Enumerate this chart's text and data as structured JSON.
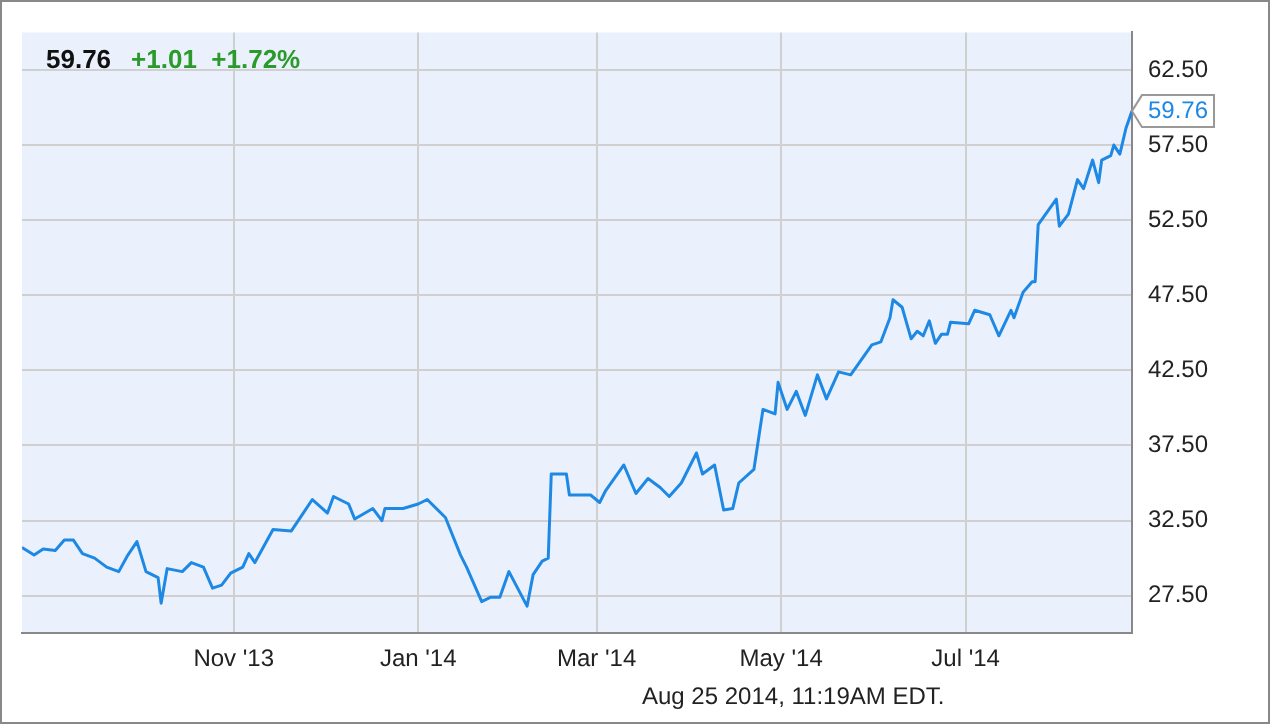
{
  "chart_data": {
    "type": "line",
    "title": "59.76",
    "subtitle": "+1.01  +1.72%",
    "annotations": [
      {
        "text": "59.76",
        "x": "2014-08-25",
        "y": 59.76
      },
      "Aug 25 2014, 11:19AM EDT."
    ],
    "x": [
      "2013-08-23",
      "2013-08-27",
      "2013-08-30",
      "2013-09-03",
      "2013-09-06",
      "2013-09-09",
      "2013-09-12",
      "2013-09-16",
      "2013-09-20",
      "2013-09-24",
      "2013-09-27",
      "2013-09-30",
      "2013-10-03",
      "2013-10-07",
      "2013-10-08",
      "2013-10-10",
      "2013-10-15",
      "2013-10-18",
      "2013-10-22",
      "2013-10-25",
      "2013-10-28",
      "2013-10-31",
      "2013-11-04",
      "2013-11-06",
      "2013-11-08",
      "2013-11-14",
      "2013-11-20",
      "2013-11-23",
      "2013-11-27",
      "2013-12-02",
      "2013-12-04",
      "2013-12-09",
      "2013-12-11",
      "2013-12-17",
      "2013-12-20",
      "2013-12-21",
      "2013-12-27",
      "2014-01-01",
      "2014-01-04",
      "2014-01-10",
      "2014-01-15",
      "2014-01-17",
      "2014-01-22",
      "2014-01-25",
      "2014-01-28",
      "2014-01-31",
      "2014-02-06",
      "2014-02-08",
      "2014-02-11",
      "2014-02-13",
      "2014-02-14",
      "2014-02-19",
      "2014-02-20",
      "2014-02-27",
      "2014-03-02",
      "2014-03-04",
      "2014-03-10",
      "2014-03-14",
      "2014-03-18",
      "2014-03-22",
      "2014-03-25",
      "2014-03-29",
      "2014-04-03",
      "2014-04-05",
      "2014-04-09",
      "2014-04-12",
      "2014-04-15",
      "2014-04-17",
      "2014-04-22",
      "2014-04-25",
      "2014-04-29",
      "2014-04-30",
      "2014-05-03",
      "2014-05-06",
      "2014-05-09",
      "2014-05-13",
      "2014-05-16",
      "2014-05-20",
      "2014-05-24",
      "2014-05-31",
      "2014-06-03",
      "2014-06-06",
      "2014-06-07",
      "2014-06-10",
      "2014-06-13",
      "2014-06-15",
      "2014-06-17",
      "2014-06-19",
      "2014-06-21",
      "2014-06-23",
      "2014-06-25",
      "2014-06-26",
      "2014-07-02",
      "2014-07-04",
      "2014-07-09",
      "2014-07-12",
      "2014-07-16",
      "2014-07-17",
      "2014-07-20",
      "2014-07-23",
      "2014-07-24",
      "2014-07-25",
      "2014-07-31",
      "2014-08-01",
      "2014-08-04",
      "2014-08-07",
      "2014-08-09",
      "2014-08-12",
      "2014-08-14",
      "2014-08-15",
      "2014-08-18",
      "2014-08-19",
      "2014-08-21",
      "2014-08-23",
      "2014-08-25"
    ],
    "series": [
      {
        "color": "#1e88e5",
        "values": [
          30.7,
          30.2,
          30.6,
          30.5,
          31.2,
          31.2,
          30.3,
          30.0,
          29.4,
          29.1,
          30.2,
          31.1,
          29.1,
          28.7,
          27.0,
          29.3,
          29.1,
          29.7,
          29.4,
          28.0,
          28.2,
          29.0,
          29.4,
          30.3,
          29.7,
          31.9,
          31.8,
          32.7,
          33.9,
          33.0,
          34.1,
          33.6,
          32.6,
          33.3,
          32.5,
          33.3,
          33.3,
          33.6,
          33.9,
          32.7,
          30.2,
          29.4,
          27.1,
          27.4,
          27.4,
          29.1,
          26.8,
          28.9,
          29.8,
          30.0,
          35.6,
          35.6,
          34.2,
          34.2,
          33.7,
          34.5,
          36.2,
          34.3,
          35.3,
          34.7,
          34.1,
          35.0,
          37.0,
          35.6,
          36.2,
          33.2,
          33.3,
          35.0,
          35.9,
          39.9,
          39.6,
          41.7,
          39.9,
          41.1,
          39.5,
          42.2,
          40.6,
          42.4,
          42.2,
          44.2,
          44.4,
          46.0,
          47.2,
          46.7,
          44.6,
          45.1,
          44.8,
          45.8,
          44.3,
          44.9,
          44.9,
          45.7,
          45.6,
          46.5,
          46.2,
          44.8,
          46.5,
          46.0,
          47.7,
          48.4,
          48.4,
          52.2,
          53.9,
          52.1,
          52.9,
          55.2,
          54.6,
          56.5,
          55.0,
          56.5,
          56.8,
          57.5,
          56.9,
          58.6,
          59.76
        ]
      }
    ],
    "xlim": [
      "2013-08-23",
      "2014-08-25"
    ],
    "xticks": [
      {
        "value": "2013-11-01",
        "label": "Nov '13"
      },
      {
        "value": "2014-01-01",
        "label": "Jan '14"
      },
      {
        "value": "2014-03-01",
        "label": "Mar '14"
      },
      {
        "value": "2014-05-01",
        "label": "May '14"
      },
      {
        "value": "2014-07-01",
        "label": "Jul '14"
      }
    ],
    "ylim": [
      25,
      65
    ],
    "yticks": [
      {
        "value": 27.5,
        "label": "27.50"
      },
      {
        "value": 32.5,
        "label": "32.50"
      },
      {
        "value": 37.5,
        "label": "37.50"
      },
      {
        "value": 42.5,
        "label": "42.50"
      },
      {
        "value": 47.5,
        "label": "47.50"
      },
      {
        "value": 52.5,
        "label": "52.50"
      },
      {
        "value": 57.5,
        "label": "57.50"
      },
      {
        "value": 62.5,
        "label": "62.50"
      }
    ],
    "grid": true,
    "legend": false,
    "marker": "none",
    "line_style": "solid"
  }
}
